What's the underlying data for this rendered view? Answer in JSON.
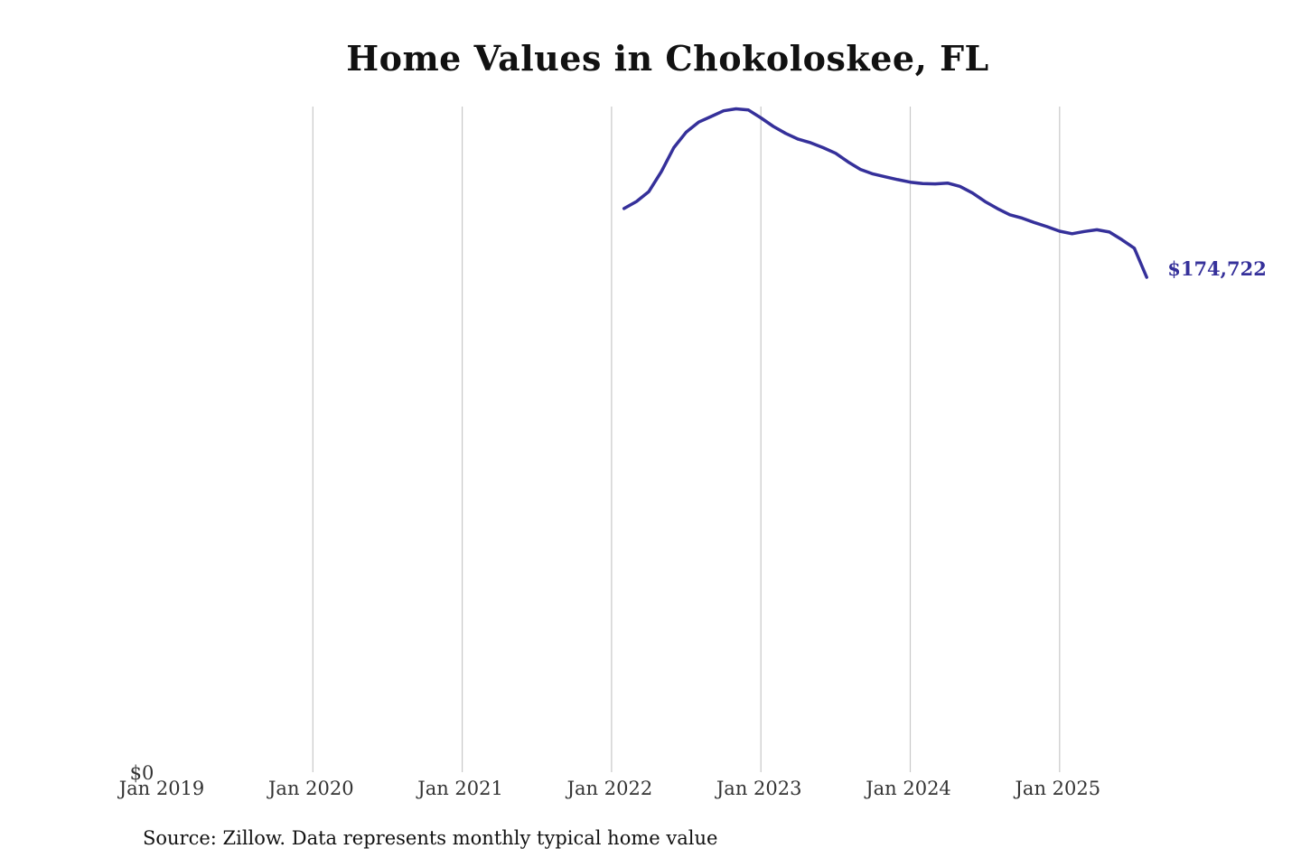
{
  "chart_data": {
    "type": "line",
    "title": "Home Values in Chokoloskee, FL",
    "xlabel": "",
    "ylabel": "",
    "x_ticks": [
      "Jan 2019",
      "Jan 2020",
      "Jan 2021",
      "Jan 2022",
      "Jan 2023",
      "Jan 2024",
      "Jan 2025"
    ],
    "y_ticks": [
      {
        "value": 0,
        "label": "$0"
      }
    ],
    "xlim": [
      "2019-01",
      "2025-09"
    ],
    "ylim": [
      0,
      235000
    ],
    "grid": "vertical",
    "line_color": "#35309a",
    "series": [
      {
        "end_label": "$174,722",
        "points": [
          [
            "2022-02",
            199000
          ],
          [
            "2022-03",
            201500
          ],
          [
            "2022-04",
            205000
          ],
          [
            "2022-05",
            212000
          ],
          [
            "2022-06",
            220500
          ],
          [
            "2022-07",
            226000
          ],
          [
            "2022-08",
            229500
          ],
          [
            "2022-09",
            231500
          ],
          [
            "2022-10",
            233500
          ],
          [
            "2022-11",
            234200
          ],
          [
            "2022-12",
            233800
          ],
          [
            "2023-01",
            231000
          ],
          [
            "2023-02",
            228000
          ],
          [
            "2023-03",
            225500
          ],
          [
            "2023-04",
            223500
          ],
          [
            "2023-05",
            222200
          ],
          [
            "2023-06",
            220500
          ],
          [
            "2023-07",
            218500
          ],
          [
            "2023-08",
            215500
          ],
          [
            "2023-09",
            212800
          ],
          [
            "2023-10",
            211200
          ],
          [
            "2023-11",
            210200
          ],
          [
            "2023-12",
            209200
          ],
          [
            "2024-01",
            208300
          ],
          [
            "2024-02",
            207800
          ],
          [
            "2024-03",
            207700
          ],
          [
            "2024-04",
            208000
          ],
          [
            "2024-05",
            206800
          ],
          [
            "2024-06",
            204500
          ],
          [
            "2024-07",
            201500
          ],
          [
            "2024-08",
            199000
          ],
          [
            "2024-09",
            196800
          ],
          [
            "2024-10",
            195600
          ],
          [
            "2024-11",
            194000
          ],
          [
            "2024-12",
            192600
          ],
          [
            "2025-01",
            191000
          ],
          [
            "2025-02",
            190100
          ],
          [
            "2025-03",
            190900
          ],
          [
            "2025-04",
            191500
          ],
          [
            "2025-05",
            190700
          ],
          [
            "2025-06",
            188000
          ],
          [
            "2025-07",
            185000
          ],
          [
            "2025-08",
            174722
          ]
        ]
      }
    ]
  },
  "footer": {
    "source": "Source: Zillow. Data represents monthly typical home value"
  }
}
